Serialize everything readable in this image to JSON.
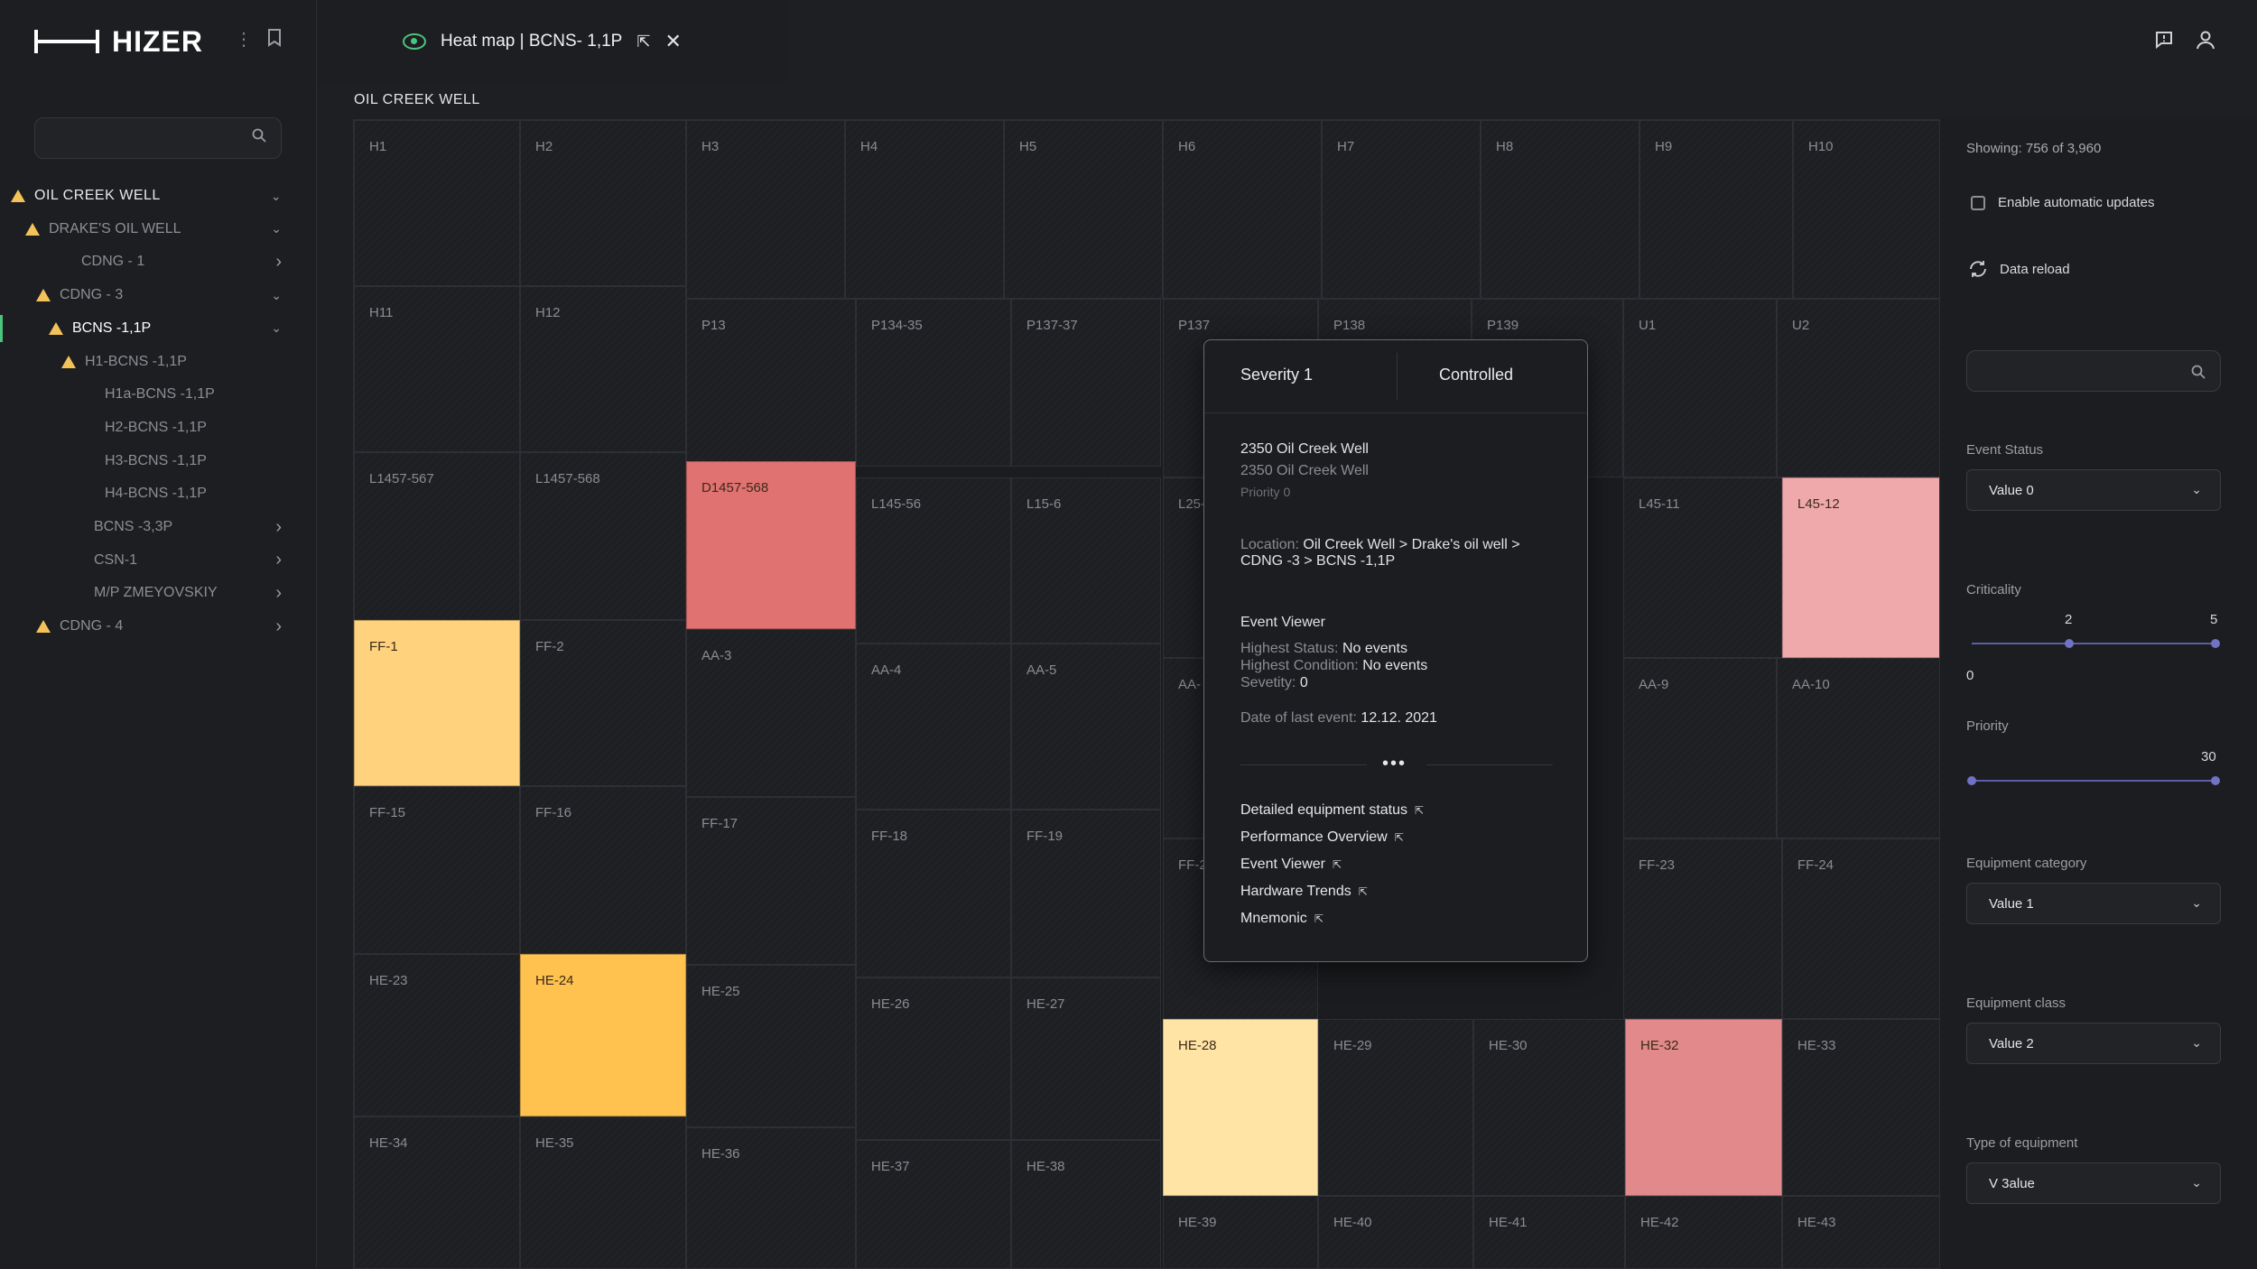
{
  "app": {
    "name": "HIZER"
  },
  "sidebar": {
    "search_placeholder": "",
    "tree": [
      {
        "label": "OIL CREEK WELL",
        "level": 0,
        "warn": true,
        "chevron": "down",
        "root": true
      },
      {
        "label": "DRAKE'S OIL WELL",
        "level": 1,
        "warn": true,
        "chevron": "down"
      },
      {
        "label": "CDNG - 1",
        "level": 2,
        "warn": false,
        "chevron": "right"
      },
      {
        "label": "CDNG - 3",
        "level": 2,
        "warn": true,
        "chevron": "down"
      },
      {
        "label": "BCNS -1,1P",
        "level": 3,
        "warn": true,
        "chevron": "down",
        "active": true
      },
      {
        "label": "H1-BCNS -1,1P",
        "level": 4,
        "warn": true,
        "chevron": ""
      },
      {
        "label": "H1a-BCNS -1,1P",
        "level": 5,
        "warn": false,
        "chevron": ""
      },
      {
        "label": "H2-BCNS -1,1P",
        "level": 5,
        "warn": false,
        "chevron": ""
      },
      {
        "label": "H3-BCNS -1,1P",
        "level": 5,
        "warn": false,
        "chevron": ""
      },
      {
        "label": "H4-BCNS -1,1P",
        "level": 5,
        "warn": false,
        "chevron": ""
      },
      {
        "label": "BCNS -3,3P",
        "level": 3,
        "warn": false,
        "chevron": "right"
      },
      {
        "label": "CSN-1",
        "level": 3,
        "warn": false,
        "chevron": "right"
      },
      {
        "label": "M/P ZMEYOVSKIY",
        "level": 3,
        "warn": false,
        "chevron": "right"
      },
      {
        "label": "CDNG - 4",
        "level": 2,
        "warn": true,
        "chevron": "right"
      }
    ]
  },
  "tab": {
    "title": "Heat map | BCNS- 1,1P"
  },
  "breadcrumb": "OIL CREEK WELL",
  "colors": {
    "yellow": "#ffd27d",
    "orange": "#ffc24f",
    "pale_yellow": "#ffe4a6",
    "red": "#e07272",
    "pink": "#efa9ab",
    "rose": "#e2898b"
  },
  "heatmap": {
    "cells": [
      "H1",
      "H2",
      "H3",
      "H4",
      "H5",
      "H6",
      "H7",
      "H8",
      "H9",
      "H10",
      "H11",
      "H12",
      "P13",
      "P134-35",
      "P137-37",
      "P137",
      "P138",
      "P139",
      "U1",
      "U2",
      "L1457-567",
      "L1457-568",
      "D1457-568",
      "L145-56",
      "L15-6",
      "L25-",
      "L45-11",
      "L45-12",
      "FF-1",
      "FF-2",
      "AA-3",
      "AA-4",
      "AA-5",
      "AA-",
      "AA-9",
      "AA-10",
      "FF-15",
      "FF-16",
      "FF-17",
      "FF-18",
      "FF-19",
      "FF-2",
      "FF-23",
      "FF-24",
      "HE-23",
      "HE-24",
      "HE-25",
      "HE-26",
      "HE-27",
      "HE-28",
      "HE-29",
      "HE-30",
      "HE-32",
      "HE-33",
      "HE-34",
      "HE-35",
      "HE-36",
      "HE-37",
      "HE-38",
      "HE-39",
      "HE-40",
      "HE-41",
      "HE-42",
      "HE-43"
    ]
  },
  "popup": {
    "severity": "Severity 1",
    "status": "Controlled",
    "name": "2350 Oil Creek Well",
    "subname": "2350 Oil Creek Well",
    "priority": "Priority 0",
    "location_label": "Location:",
    "location_1": "Oil Creek Well  >  Drake's oil well  >",
    "location_2": "CDNG -3  >  BCNS -1,1P",
    "event_viewer_title": "Event Viewer",
    "highest_status_label": "Highest Status:",
    "highest_status": "No events",
    "highest_condition_label": "Highest Condition:",
    "highest_condition": "No events",
    "severity_label": "Sevetity:",
    "severity_value": "0",
    "last_event_label": "Date of last event:",
    "last_event": "12.12. 2021",
    "links": [
      "Detailed equipment status",
      "Performance Overview",
      "Event Viewer",
      "Hardware Trends",
      "Mnemonic"
    ]
  },
  "panel": {
    "showing": "Showing: 756 of 3,960",
    "auto_updates": "Enable automatic updates",
    "reload": "Data reload",
    "search_placeholder": "",
    "event_status": {
      "label": "Event Status",
      "value": "Value 0"
    },
    "criticality": {
      "label": "Criticality",
      "low": 2,
      "high": 5,
      "min_label": "0",
      "min": 0,
      "max": 5
    },
    "priority": {
      "label": "Priority",
      "value": 30,
      "max": 30
    },
    "equipment_category": {
      "label": "Equipment category",
      "value": "Value 1"
    },
    "equipment_class": {
      "label": "Equipment class",
      "value": "Value 2"
    },
    "type_of_equipment": {
      "label": "Type of equipment",
      "value": "V 3alue"
    }
  }
}
